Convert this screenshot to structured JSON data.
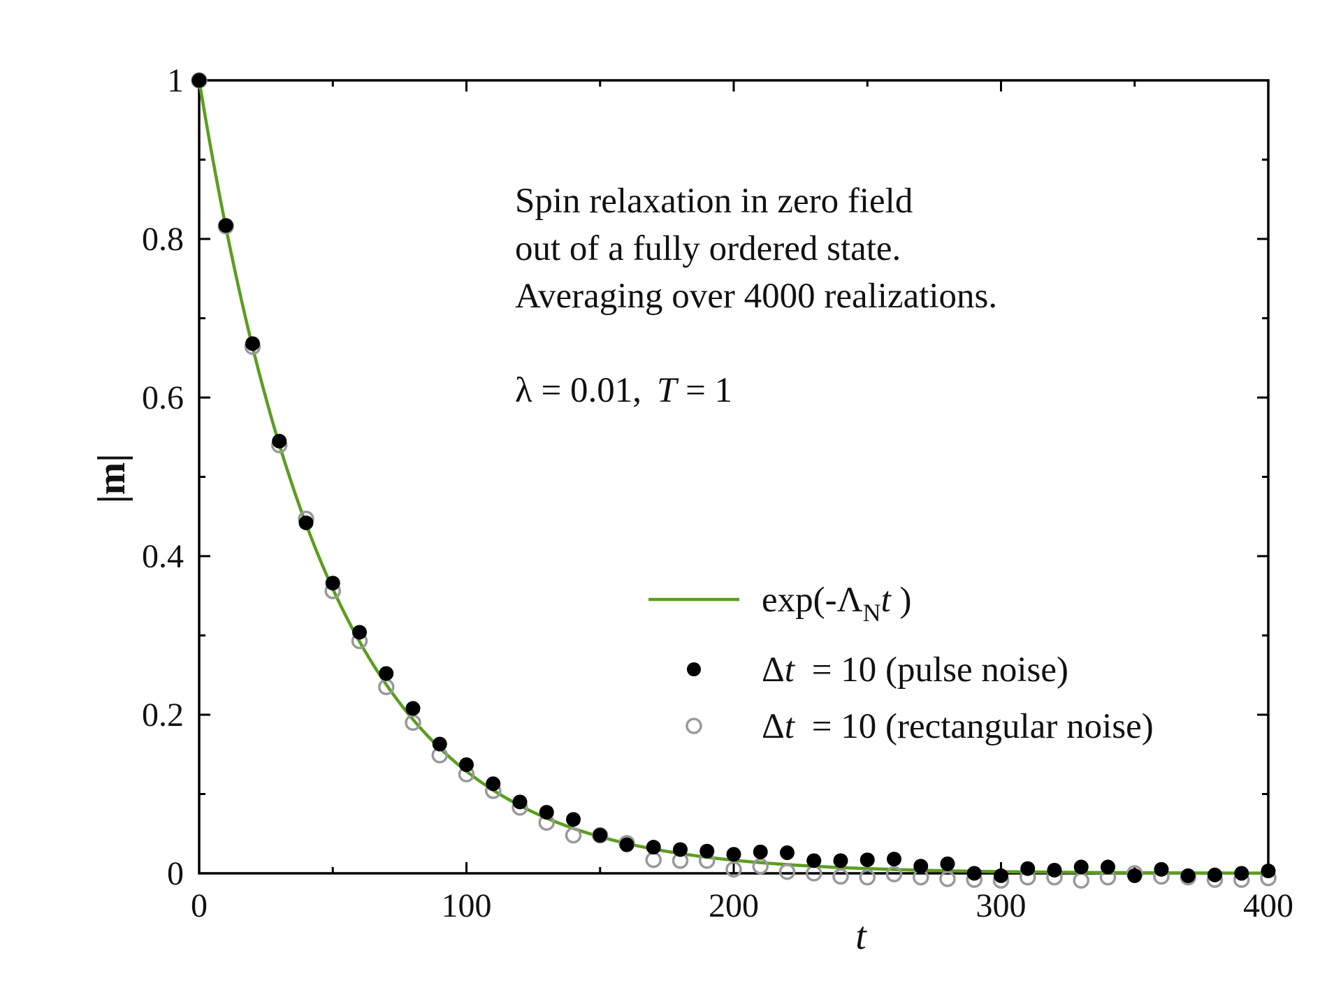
{
  "chart_data": {
    "type": "scatter",
    "title": "",
    "xlabel": "t",
    "ylabel": "|m|",
    "xlim": [
      0,
      400
    ],
    "ylim": [
      0,
      1
    ],
    "x_ticks": [
      0,
      100,
      200,
      300,
      400
    ],
    "x_tick_labels": [
      "0",
      "100",
      "200",
      "300",
      "400"
    ],
    "y_ticks": [
      0,
      0.2,
      0.4,
      0.6,
      0.8,
      1
    ],
    "y_tick_labels": [
      "0",
      "0.2",
      "0.4",
      "0.6",
      "0.8",
      "1"
    ],
    "grid": false,
    "annotation_lines": [
      "Spin relaxation in zero field",
      "out of a fully ordered state.",
      "Averaging over 4000 realizations."
    ],
    "parameters": {
      "lambda_text": "λ = 0.01,",
      "T_label": "T",
      "T_value_text": " = 1"
    },
    "legend_position": "center-right",
    "series": [
      {
        "name": "exp(-ΛNt )",
        "legend": {
          "prefix": "exp(-Λ",
          "subscript": "N",
          "italic": "t",
          "suffix": " )"
        },
        "kind": "line",
        "color": "#5a9e1f",
        "decay_rate": 0.0205,
        "x_range": [
          0,
          400
        ]
      },
      {
        "name": "Δt = 10 (pulse noise)",
        "legend": {
          "prefix": "Δ",
          "italic": "t",
          "suffix": " = 10 (pulse noise)"
        },
        "kind": "markers",
        "marker": "filled-circle",
        "color": "#000000",
        "x": [
          0,
          10,
          20,
          30,
          40,
          50,
          60,
          70,
          80,
          90,
          100,
          110,
          120,
          130,
          140,
          150,
          160,
          170,
          180,
          190,
          200,
          210,
          220,
          230,
          240,
          250,
          260,
          270,
          280,
          290,
          300,
          310,
          320,
          330,
          340,
          350,
          360,
          370,
          380,
          390,
          400
        ],
        "y": [
          1.0,
          0.817,
          0.668,
          0.545,
          0.442,
          0.366,
          0.304,
          0.252,
          0.208,
          0.163,
          0.137,
          0.113,
          0.09,
          0.077,
          0.068,
          0.048,
          0.036,
          0.033,
          0.03,
          0.028,
          0.024,
          0.027,
          0.026,
          0.016,
          0.016,
          0.017,
          0.018,
          0.009,
          0.012,
          0.0,
          -0.003,
          0.006,
          0.004,
          0.008,
          0.008,
          -0.003,
          0.005,
          -0.003,
          -0.002,
          0.0,
          0.003
        ]
      },
      {
        "name": "Δt = 10 (rectangular noise)",
        "legend": {
          "prefix": "Δ",
          "italic": "t",
          "suffix": " = 10 (rectangular noise)"
        },
        "kind": "markers",
        "marker": "open-circle",
        "color": "#999999",
        "x": [
          0,
          10,
          20,
          30,
          40,
          50,
          60,
          70,
          80,
          90,
          100,
          110,
          120,
          130,
          140,
          150,
          160,
          170,
          180,
          190,
          200,
          210,
          220,
          230,
          240,
          250,
          260,
          270,
          280,
          290,
          300,
          310,
          320,
          330,
          340,
          350,
          360,
          370,
          380,
          390,
          400
        ],
        "y": [
          1.0,
          0.816,
          0.664,
          0.54,
          0.447,
          0.356,
          0.293,
          0.235,
          0.19,
          0.149,
          0.125,
          0.104,
          0.083,
          0.064,
          0.048,
          0.048,
          0.038,
          0.017,
          0.016,
          0.016,
          0.005,
          0.009,
          0.002,
          0.0,
          -0.004,
          -0.005,
          -0.001,
          -0.005,
          -0.007,
          -0.008,
          -0.009,
          -0.005,
          -0.005,
          -0.009,
          -0.005,
          0.0,
          -0.004,
          -0.005,
          -0.008,
          -0.008,
          -0.006
        ]
      }
    ]
  }
}
